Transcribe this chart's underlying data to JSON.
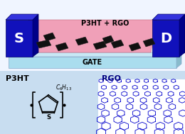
{
  "bg_color": "#f0f5ff",
  "transistor": {
    "gate_color": "#aaddee",
    "gate_color_top": "#c8e8f5",
    "gate_color_side": "#88bbcc",
    "gate_text": "GATE",
    "electrode_color": "#1111bb",
    "electrode_color_top": "#3333dd",
    "electrode_color_side": "#000088",
    "S_label": "S",
    "D_label": "D",
    "channel_color": "#f0a0b8",
    "channel_text": "P3HT + RGO",
    "rgo_flake_color": "#111111"
  },
  "bottom_left_label": "P3HT",
  "bottom_right_label": "RGO",
  "label_color": "#000000",
  "rgo_label_color": "#000080",
  "electrode_label_color": "#ffffff",
  "graphene_color": "#0000cc",
  "graphene_bg": "#dde8ff",
  "bottom_bg": "#c8ddf0",
  "flakes": [
    [
      [
        55,
        68
      ],
      [
        72,
        64
      ],
      [
        68,
        56
      ],
      [
        51,
        60
      ]
    ],
    [
      [
        82,
        72
      ],
      [
        96,
        68
      ],
      [
        92,
        60
      ],
      [
        78,
        64
      ]
    ],
    [
      [
        110,
        64
      ],
      [
        124,
        60
      ],
      [
        120,
        52
      ],
      [
        106,
        56
      ]
    ],
    [
      [
        135,
        70
      ],
      [
        150,
        66
      ],
      [
        146,
        58
      ],
      [
        131,
        62
      ]
    ],
    [
      [
        160,
        68
      ],
      [
        174,
        64
      ],
      [
        170,
        56
      ],
      [
        156,
        60
      ]
    ],
    [
      [
        185,
        72
      ],
      [
        198,
        68
      ],
      [
        194,
        60
      ],
      [
        181,
        64
      ]
    ],
    [
      [
        65,
        58
      ],
      [
        78,
        54
      ],
      [
        74,
        46
      ],
      [
        61,
        50
      ]
    ],
    [
      [
        148,
        62
      ],
      [
        160,
        58
      ],
      [
        156,
        50
      ],
      [
        144,
        54
      ]
    ],
    [
      [
        205,
        66
      ],
      [
        218,
        62
      ],
      [
        214,
        54
      ],
      [
        201,
        58
      ]
    ]
  ]
}
